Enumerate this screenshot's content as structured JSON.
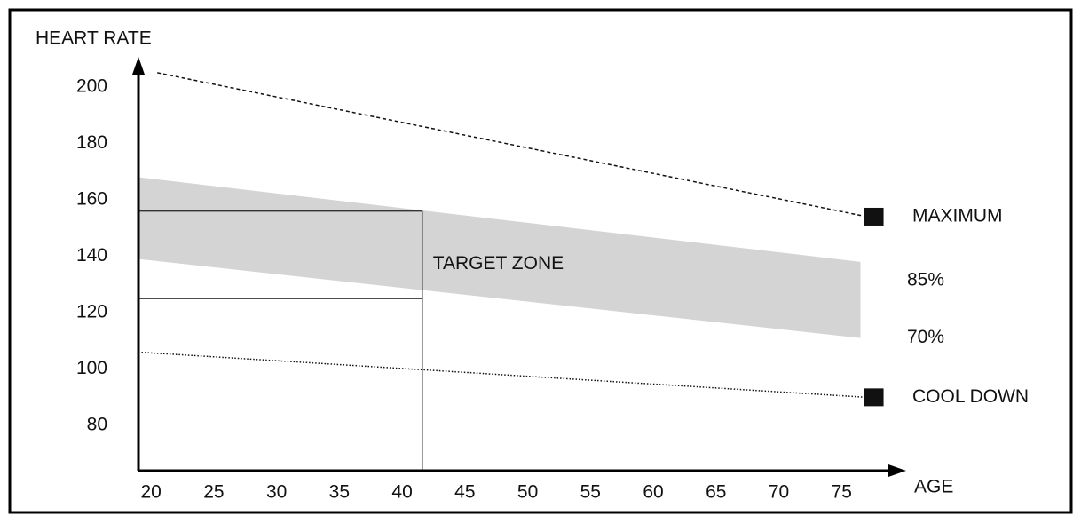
{
  "chart_data": {
    "type": "line",
    "x_label": "AGE",
    "y_label": "HEART RATE",
    "xlim": [
      19,
      80
    ],
    "ylim": [
      64,
      210
    ],
    "xticks": [
      20,
      25,
      30,
      35,
      40,
      45,
      50,
      55,
      60,
      65,
      70,
      75
    ],
    "yticks": [
      80,
      100,
      120,
      140,
      160,
      180,
      200
    ],
    "series": [
      {
        "name": "MAXIMUM",
        "color": "#111111",
        "style": "dashed",
        "x": [
          20.5,
          77
        ],
        "values": [
          205,
          154
        ]
      },
      {
        "name": "COOL DOWN",
        "color": "#111111",
        "style": "dotted",
        "x": [
          19,
          77
        ],
        "values": [
          106,
          90
        ]
      }
    ],
    "band": {
      "upper_name": "85%",
      "lower_name": "70%",
      "color": "#d4d4d4",
      "x": [
        19,
        76.5
      ],
      "upper": [
        168,
        138
      ],
      "lower": [
        139,
        111
      ]
    },
    "target": {
      "label": "TARGET ZONE",
      "x": 41.6,
      "values": [
        156,
        125
      ]
    }
  }
}
